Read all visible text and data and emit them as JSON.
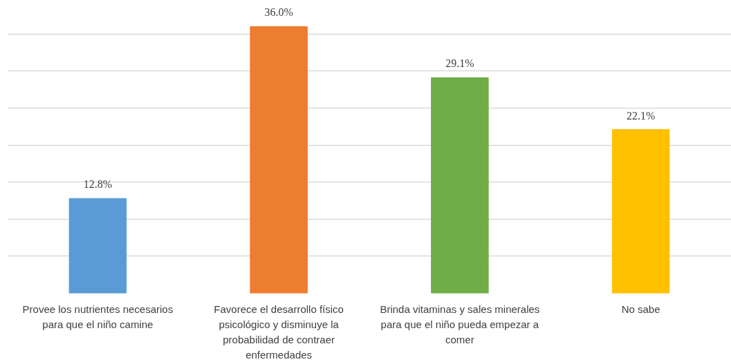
{
  "chart_data": {
    "type": "bar",
    "categories": [
      "Provee los nutrientes necesarios para que el niño camine",
      "Favorece el desarrollo físico psicológico y disminuye la probabilidad de contraer enfermedades",
      "Brinda vitaminas y sales minerales para que el niño pueda empezar a comer",
      "No sabe"
    ],
    "values": [
      12.8,
      36.0,
      29.1,
      22.1
    ],
    "colors": [
      "#5b9bd5",
      "#ed7d31",
      "#70ad47",
      "#ffc000"
    ],
    "value_labels": [
      "12.8%",
      "36.0%",
      "29.1%",
      "22.1%"
    ],
    "grid": "y",
    "tick_labels": "x"
  }
}
